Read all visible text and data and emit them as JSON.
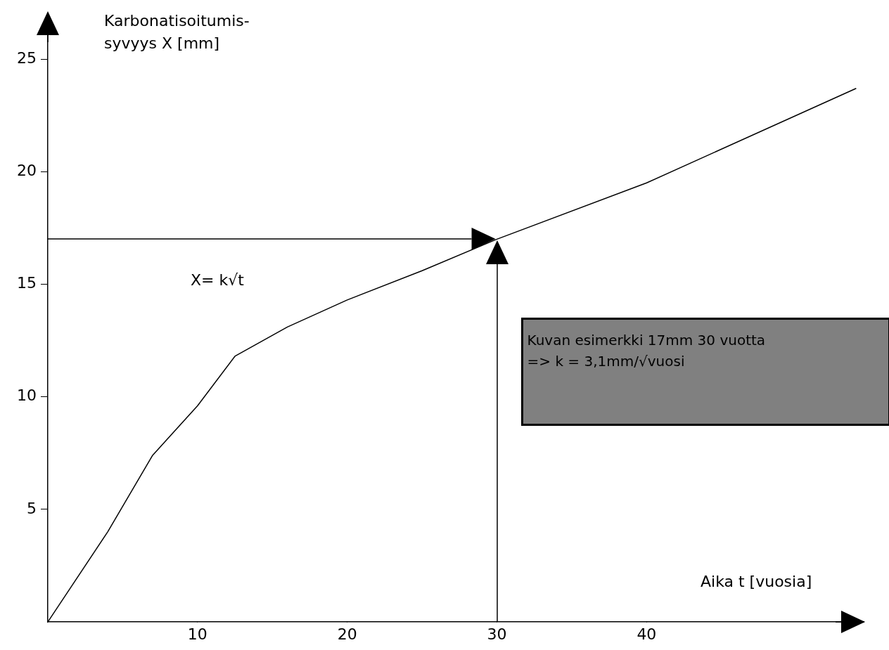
{
  "chart_data": {
    "type": "line",
    "xlabel": "Aika t [vuosia]",
    "ylabel": "Karbonatisoitumis-\nsyvyys X [mm]",
    "x": [
      0,
      4,
      7,
      10,
      12.5,
      16,
      20,
      25,
      30,
      40,
      54
    ],
    "series": [
      {
        "color": "#000000",
        "values": [
          0,
          4,
          7.4,
          9.6,
          11.8,
          13.1,
          14.3,
          15.6,
          17,
          19.5,
          23.7
        ]
      }
    ],
    "xlim": [
      0,
      54.5
    ],
    "xticks": [
      10,
      20,
      30,
      40
    ],
    "ylim": [
      0,
      27
    ],
    "yticks": [
      5,
      10,
      15,
      20,
      25
    ],
    "grid": false,
    "legend": false,
    "marker": "none",
    "line_style": "solid",
    "ref_lines": [
      {
        "axis": "y",
        "value": 17
      },
      {
        "axis": "x",
        "value": 30
      }
    ],
    "annotations": [
      "X= k√t",
      "Kuvan esimerkki 17mm 30 vuotta\n=> k = 3,1mm/√vuosi"
    ]
  }
}
